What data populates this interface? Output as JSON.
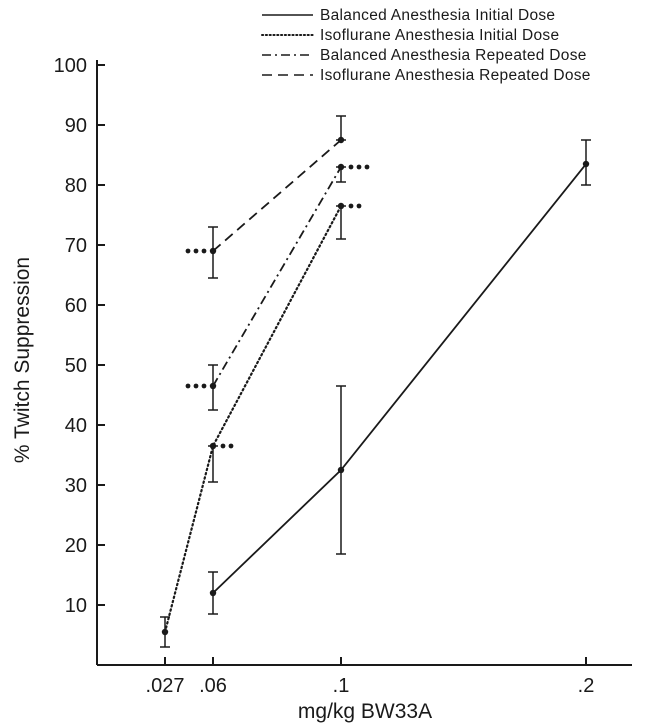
{
  "chart_data": {
    "type": "line",
    "xlabel": "mg/kg BW33A",
    "ylabel": "% Twitch Suppression",
    "x_ticks": [
      ".027",
      ".06",
      ".1",
      ".2"
    ],
    "y_ticks": [
      "10",
      "20",
      "30",
      "40",
      "50",
      "60",
      "70",
      "80",
      "90",
      "100"
    ],
    "ylim": [
      0,
      100
    ],
    "grid": false,
    "legend_position": "top-right",
    "series": [
      {
        "name": "Balanced Anesthesia Initial Dose",
        "line_style": "solid",
        "points": [
          {
            "x": ".06",
            "y": 12,
            "err_low": 8.5,
            "err_high": 15.5
          },
          {
            "x": ".1",
            "y": 32.5,
            "err_low": 18.5,
            "err_high": 46.5
          },
          {
            "x": ".2",
            "y": 83.5,
            "err_low": 80,
            "err_high": 87.5
          }
        ]
      },
      {
        "name": "Isoflurane Anesthesia Initial Dose",
        "line_style": "dotted",
        "points": [
          {
            "x": ".027",
            "y": 5.5,
            "err_low": 3,
            "err_high": 8
          },
          {
            "x": ".06",
            "y": 36.5,
            "err_low": 30.5,
            "err_high": 36.5,
            "significance": "••"
          },
          {
            "x": ".1",
            "y": 76.5,
            "err_low": 71,
            "err_high": 76.5,
            "significance": "••"
          }
        ]
      },
      {
        "name": "Balanced Anesthesia Repeated Dose",
        "line_style": "dash-dot",
        "points": [
          {
            "x": ".06",
            "y": 46.5,
            "err_low": 42.5,
            "err_high": 50,
            "significance": "•••"
          },
          {
            "x": ".1",
            "y": 83,
            "err_low": 80.5,
            "err_high": 83,
            "significance": "•••"
          }
        ]
      },
      {
        "name": "Isoflurane Anesthesia Repeated Dose",
        "line_style": "dashed",
        "points": [
          {
            "x": ".06",
            "y": 69,
            "err_low": 64.5,
            "err_high": 73,
            "significance": "•••"
          },
          {
            "x": ".1",
            "y": 87.5,
            "err_low": 87.5,
            "err_high": 91.5
          }
        ]
      }
    ]
  }
}
